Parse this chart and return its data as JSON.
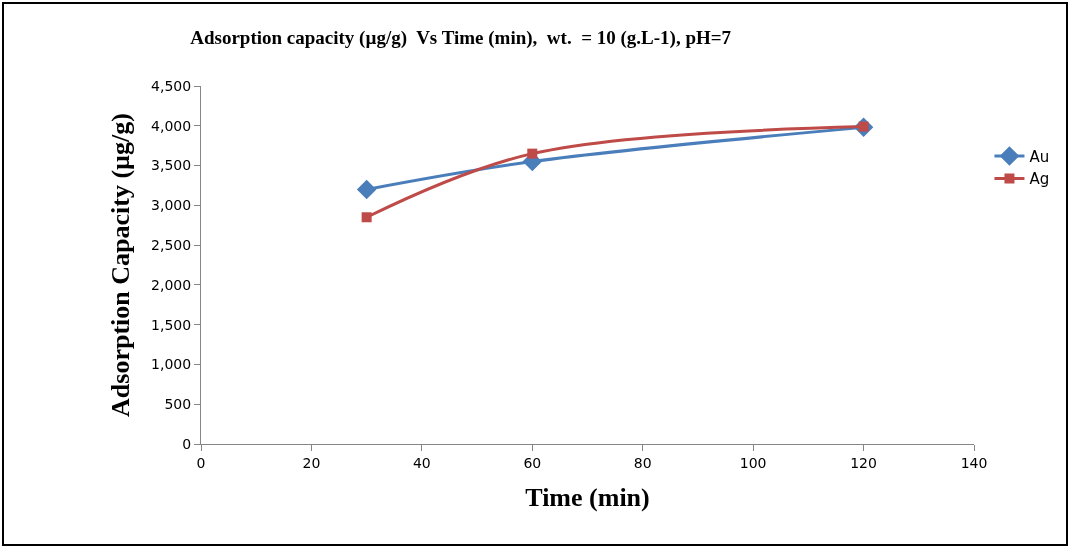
{
  "chart_data": {
    "type": "line",
    "title": "Adsorption capacity (µg/g)  Vs Time (min),  wt.  = 10 (g.L-1), pH=7",
    "xlabel": "Time (min)",
    "ylabel": "Adsorption Capacity (µg/g)",
    "x": [
      30,
      60,
      120
    ],
    "series": [
      {
        "name": "Au",
        "color": "#4a7ebb",
        "values": [
          3200,
          3550,
          3980
        ],
        "marker": "diamond"
      },
      {
        "name": "Ag",
        "color": "#be4b48",
        "values": [
          2850,
          3650,
          3990
        ],
        "marker": "square"
      }
    ],
    "xlim": [
      0,
      140
    ],
    "xticks": [
      0,
      20,
      40,
      60,
      80,
      100,
      120,
      140
    ],
    "ylim": [
      0,
      4500
    ],
    "yticks": [
      0,
      500,
      {
        "value": 1000,
        "label": "1,000"
      },
      {
        "value": 1500,
        "label": "1,500"
      },
      {
        "value": 2000,
        "label": "2,000"
      },
      {
        "value": 2500,
        "label": "2,500"
      },
      {
        "value": 3000,
        "label": "3,000"
      },
      {
        "value": 3500,
        "label": "3,500"
      },
      {
        "value": 4000,
        "label": "4,000"
      },
      {
        "value": 4500,
        "label": "4,500"
      }
    ],
    "grid": false,
    "legend": "right",
    "line_style": "solid"
  }
}
